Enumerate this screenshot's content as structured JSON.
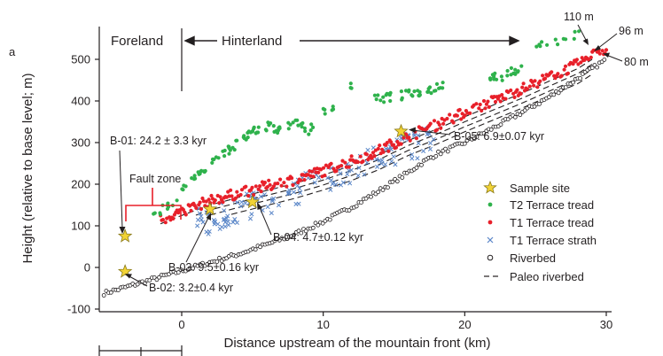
{
  "panel_label": "a",
  "chart_data": {
    "type": "scatter",
    "title": "",
    "xlabel": "Distance upstream of the mountain front (km)",
    "ylabel": "Height (relative to base level; m)",
    "xlim": [
      -5.5,
      30.5
    ],
    "ylim": [
      -100,
      560
    ],
    "xticks": [
      "0",
      "10",
      "20",
      "30"
    ],
    "xtick_values": [
      0,
      10,
      20,
      30
    ],
    "yticks": [
      "-100",
      "0",
      "100",
      "200",
      "300",
      "400",
      "500"
    ],
    "ytick_values": [
      -100,
      0,
      100,
      200,
      300,
      400,
      500
    ],
    "grid": false,
    "legend_position": "bottom-right",
    "legend": [
      {
        "label": "Sample site",
        "symbol": "star",
        "color": "#f2d335"
      },
      {
        "label": "T2 Terrace tread",
        "symbol": "dot",
        "color": "#2fb24c"
      },
      {
        "label": "T1 Terrace tread",
        "symbol": "dot",
        "color": "#e8202a"
      },
      {
        "label": "T1 Terrace strath",
        "symbol": "cross",
        "color": "#5a86c8"
      },
      {
        "label": "Riverbed",
        "symbol": "circle",
        "color": "#231f20"
      },
      {
        "label": "Paleo riverbed",
        "symbol": "dash",
        "color": "#231f20"
      }
    ],
    "series": [
      {
        "name": "Riverbed",
        "color": "#231f20",
        "points": [
          [
            -5.5,
            -62
          ],
          [
            -4,
            -48
          ],
          [
            -2,
            -28
          ],
          [
            0,
            -8
          ],
          [
            2,
            12
          ],
          [
            4,
            32
          ],
          [
            6,
            55
          ],
          [
            8,
            80
          ],
          [
            10,
            110
          ],
          [
            12,
            145
          ],
          [
            14,
            185
          ],
          [
            16,
            228
          ],
          [
            17,
            252
          ],
          [
            18,
            272
          ],
          [
            20,
            300
          ],
          [
            22,
            335
          ],
          [
            24,
            372
          ],
          [
            26,
            410
          ],
          [
            28,
            455
          ],
          [
            30,
            500
          ]
        ]
      },
      {
        "name": "T1 Terrace strath",
        "color": "#5a86c8",
        "points": [
          [
            1,
            105
          ],
          [
            3,
            128
          ],
          [
            5,
            150
          ],
          [
            6,
            162
          ],
          [
            8,
            182
          ],
          [
            9,
            195
          ],
          [
            10,
            205
          ],
          [
            11,
            218
          ],
          [
            12,
            230
          ],
          [
            13,
            248
          ],
          [
            14,
            262
          ],
          [
            15,
            278
          ],
          [
            16,
            292
          ],
          [
            17,
            300
          ],
          [
            18,
            315
          ]
        ]
      },
      {
        "name": "T1 Terrace tread",
        "color": "#e8202a",
        "points": [
          [
            -1.5,
            115
          ],
          [
            0,
            135
          ],
          [
            2,
            160
          ],
          [
            4,
            178
          ],
          [
            6,
            195
          ],
          [
            8,
            212
          ],
          [
            10,
            232
          ],
          [
            12,
            255
          ],
          [
            14,
            282
          ],
          [
            16,
            315
          ],
          [
            18,
            342
          ],
          [
            20,
            372
          ],
          [
            22,
            400
          ],
          [
            24,
            428
          ],
          [
            26,
            458
          ],
          [
            28,
            488
          ],
          [
            29,
            510
          ],
          [
            30,
            525
          ]
        ]
      },
      {
        "name": "T2 Terrace tread",
        "color": "#2fb24c",
        "points": [
          [
            -2,
            130
          ],
          [
            -0.5,
            150
          ],
          [
            0,
            185
          ],
          [
            1,
            215
          ],
          [
            2,
            245
          ],
          [
            3,
            275
          ],
          [
            4,
            300
          ],
          [
            5,
            330
          ],
          [
            6,
            340
          ],
          [
            7,
            332
          ],
          [
            8,
            345
          ],
          [
            9,
            330
          ],
          [
            10,
            378
          ],
          [
            11,
            392
          ],
          [
            12,
            438
          ],
          [
            14,
            405
          ],
          [
            16,
            415
          ],
          [
            18,
            432
          ],
          [
            21,
            468
          ],
          [
            22,
            460
          ],
          [
            22.5,
            450
          ],
          [
            23,
            470
          ],
          [
            24,
            478
          ],
          [
            25,
            535
          ],
          [
            27,
            542
          ],
          [
            28,
            560
          ]
        ]
      }
    ],
    "paleo_riverbed_offsets_m": [
      10,
      22,
      34,
      46
    ],
    "sample_sites": [
      {
        "label": "B-01: 24.2 ± 3.3 kyr",
        "x": -4,
        "y": 75
      },
      {
        "label": "B-02: 3.2±0.4 kyr",
        "x": -4,
        "y": -10
      },
      {
        "label": "B-03: 9.5±0.16 kyr",
        "x": 2,
        "y": 140
      },
      {
        "label": "B-04: 4.7±0.12 kyr",
        "x": 5,
        "y": 157
      },
      {
        "label": "B-05: 6.9±0.07 kyr",
        "x": 15.5,
        "y": 327
      }
    ],
    "annotations": {
      "foreland": "Foreland",
      "hinterland": "Hinterland",
      "fault_zone": "Fault zone",
      "elev_110": "110 m",
      "elev_96": "96 m",
      "elev_80": "80 m"
    }
  }
}
